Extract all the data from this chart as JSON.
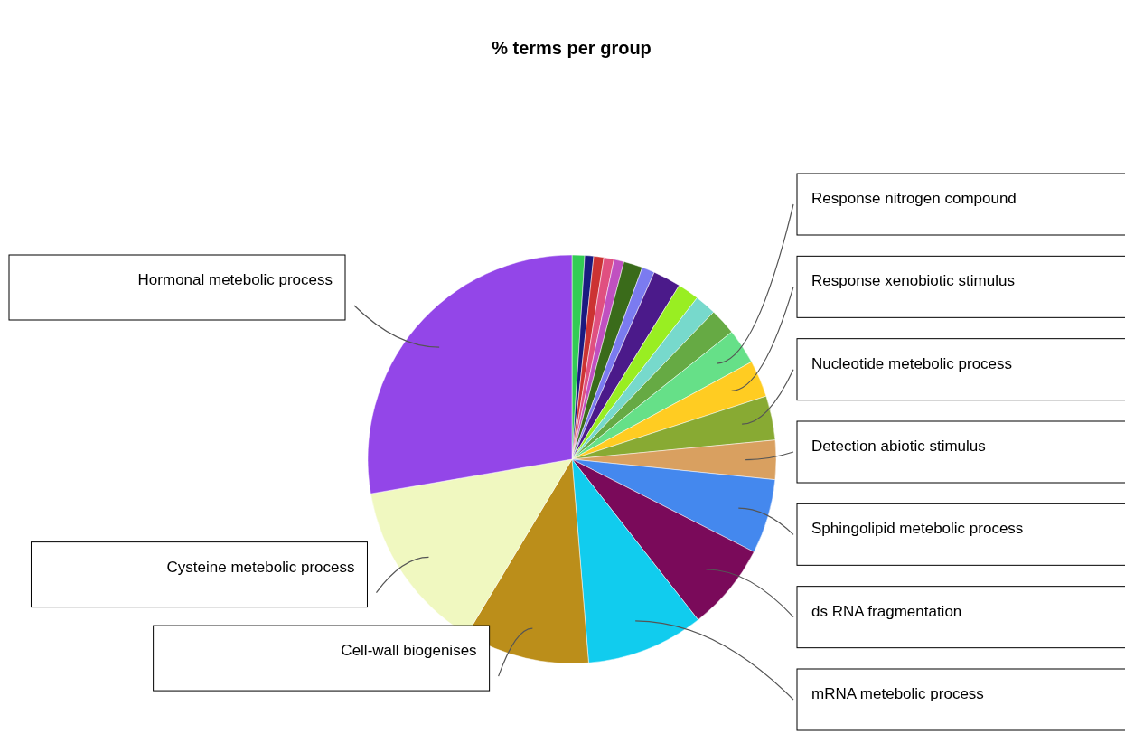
{
  "chart_data": {
    "type": "pie",
    "title": "% terms per group",
    "categories": [
      null,
      null,
      null,
      null,
      null,
      null,
      null,
      null,
      null,
      null,
      null,
      "Response nitrogen compound",
      "Response xenobiotic stimulus",
      "Nucleotide metebolic process",
      "Detection abiotic stimulus",
      "Sphingolipid metebolic process",
      "ds RNA fragmentation",
      "mRNA metebolic process",
      "Cell-wall biogenises",
      "Cysteine metebolic process",
      "Hormonal metebolic process"
    ],
    "values": [
      1.0,
      0.7,
      0.8,
      0.8,
      0.8,
      1.5,
      1.0,
      2.2,
      1.7,
      1.7,
      2.1,
      2.8,
      2.9,
      3.5,
      3.1,
      5.9,
      6.9,
      9.3,
      9.9,
      13.7,
      27.7
    ],
    "colors": [
      "#33cc55",
      "#1a1a80",
      "#cc3333",
      "#e05080",
      "#c050c0",
      "#3a6b1a",
      "#7b7bf0",
      "#4b1a8a",
      "#99ee22",
      "#77d9cc",
      "#66aa44",
      "#66e088",
      "#ffcc22",
      "#88aa33",
      "#d9a060",
      "#4488ee",
      "#7a0a5a",
      "#11ccee",
      "#bb8e1a",
      "#f0f8c0",
      "#9346e8"
    ]
  }
}
